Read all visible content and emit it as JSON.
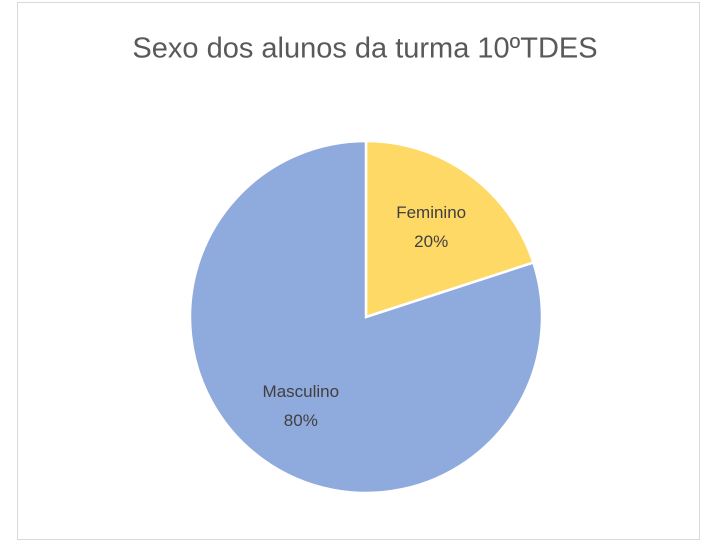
{
  "chart_data": {
    "type": "pie",
    "title": "Sexo dos alunos da turma 10ºTDES",
    "categories": [
      "Feminino",
      "Masculino"
    ],
    "values": [
      20,
      80
    ],
    "value_labels": [
      "20%",
      "80%"
    ],
    "colors": [
      "#ffd966",
      "#8faadc"
    ]
  }
}
